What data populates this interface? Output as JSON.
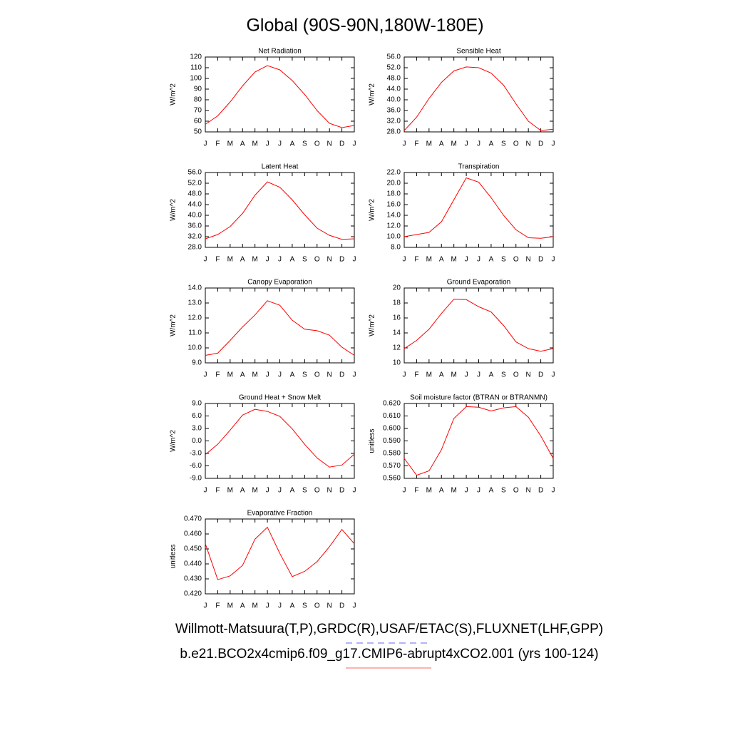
{
  "title": "Global (90S-90N,180W-180E)",
  "chart_data": [
    {
      "type": "line",
      "title": "Net Radiation",
      "y_label": "W/m^2",
      "color": "#ff0000",
      "categories": [
        "J",
        "F",
        "M",
        "A",
        "M",
        "J",
        "J",
        "A",
        "S",
        "O",
        "N",
        "D",
        "J"
      ],
      "values": [
        57,
        65,
        78,
        93,
        106,
        112,
        108,
        98,
        85,
        70,
        58,
        54,
        56
      ],
      "ylim": [
        50,
        120
      ],
      "yticks": [
        50,
        60,
        70,
        80,
        90,
        100,
        110,
        120
      ]
    },
    {
      "type": "line",
      "title": "Sensible Heat",
      "y_label": "W/m^2",
      "color": "#ff0000",
      "categories": [
        "J",
        "F",
        "M",
        "A",
        "M",
        "J",
        "J",
        "A",
        "S",
        "O",
        "N",
        "D",
        "J"
      ],
      "values": [
        28.5,
        33.5,
        40.5,
        46.5,
        50.8,
        52.3,
        52,
        50,
        45.5,
        38.5,
        32,
        28.5,
        29
      ],
      "ylim": [
        28,
        56
      ],
      "yticks": [
        {
          "value": 28,
          "label": "28.0"
        },
        {
          "value": 32,
          "label": "32.0"
        },
        {
          "value": 36,
          "label": "36.0"
        },
        {
          "value": 40,
          "label": "40.0"
        },
        {
          "value": 44,
          "label": "44.0"
        },
        {
          "value": 48,
          "label": "48.0"
        },
        {
          "value": 52,
          "label": "52.0"
        },
        {
          "value": 56,
          "label": "56.0"
        }
      ]
    },
    {
      "type": "line",
      "title": "Latent Heat",
      "y_label": "W/m^2",
      "color": "#ff0000",
      "categories": [
        "J",
        "F",
        "M",
        "A",
        "M",
        "J",
        "J",
        "A",
        "S",
        "O",
        "N",
        "D",
        "J"
      ],
      "values": [
        31.2,
        32.8,
        35.8,
        40.7,
        47.5,
        52.5,
        50.5,
        45.8,
        40.2,
        35.2,
        32.5,
        31,
        31.2
      ],
      "ylim": [
        28,
        56
      ],
      "yticks": [
        {
          "value": 28,
          "label": "28.0"
        },
        {
          "value": 32,
          "label": "32.0"
        },
        {
          "value": 36,
          "label": "36.0"
        },
        {
          "value": 40,
          "label": "40.0"
        },
        {
          "value": 44,
          "label": "44.0"
        },
        {
          "value": 48,
          "label": "48.0"
        },
        {
          "value": 52,
          "label": "52.0"
        },
        {
          "value": 56,
          "label": "56.0"
        }
      ]
    },
    {
      "type": "line",
      "title": "Transpiration",
      "y_label": "W/m^2",
      "color": "#ff0000",
      "categories": [
        "J",
        "F",
        "M",
        "A",
        "M",
        "J",
        "J",
        "A",
        "S",
        "O",
        "N",
        "D",
        "J"
      ],
      "values": [
        10,
        10.4,
        10.8,
        12.8,
        16.9,
        21,
        20.2,
        17.3,
        14,
        11.3,
        9.8,
        9.7,
        10
      ],
      "ylim": [
        8,
        22
      ],
      "yticks": [
        {
          "value": 8,
          "label": "8.0"
        },
        {
          "value": 10,
          "label": "10.0"
        },
        {
          "value": 12,
          "label": "12.0"
        },
        {
          "value": 14,
          "label": "14.0"
        },
        {
          "value": 16,
          "label": "16.0"
        },
        {
          "value": 18,
          "label": "18.0"
        },
        {
          "value": 20,
          "label": "20.0"
        },
        {
          "value": 22,
          "label": "22.0"
        }
      ]
    },
    {
      "type": "line",
      "title": "Canopy Evaporation",
      "y_label": "W/m^2",
      "color": "#ff0000",
      "categories": [
        "J",
        "F",
        "M",
        "A",
        "M",
        "J",
        "J",
        "A",
        "S",
        "O",
        "N",
        "D",
        "J"
      ],
      "values": [
        9.5,
        9.65,
        10.5,
        11.4,
        12.2,
        13.15,
        12.85,
        11.85,
        11.25,
        11.15,
        10.85,
        10.05,
        9.5
      ],
      "ylim": [
        9,
        14
      ],
      "yticks": [
        {
          "value": 9,
          "label": "9.0"
        },
        {
          "value": 10,
          "label": "10.0"
        },
        {
          "value": 11,
          "label": "11.0"
        },
        {
          "value": 12,
          "label": "12.0"
        },
        {
          "value": 13,
          "label": "13.0"
        },
        {
          "value": 14,
          "label": "14.0"
        }
      ]
    },
    {
      "type": "line",
      "title": "Ground Evaporation",
      "y_label": "W/m^2",
      "color": "#ff0000",
      "categories": [
        "J",
        "F",
        "M",
        "A",
        "M",
        "J",
        "J",
        "A",
        "S",
        "O",
        "N",
        "D",
        "J"
      ],
      "values": [
        11.9,
        13,
        14.5,
        16.6,
        18.5,
        18.45,
        17.5,
        16.8,
        15,
        12.8,
        11.9,
        11.55,
        11.9
      ],
      "ylim": [
        10,
        20
      ],
      "yticks": [
        10,
        12,
        14,
        16,
        18,
        20
      ]
    },
    {
      "type": "line",
      "title": "Ground Heat + Snow Melt",
      "y_label": "W/m^2",
      "color": "#ff0000",
      "categories": [
        "J",
        "F",
        "M",
        "A",
        "M",
        "J",
        "J",
        "A",
        "S",
        "O",
        "N",
        "D",
        "J"
      ],
      "values": [
        -3.3,
        -0.8,
        2.6,
        6.2,
        7.6,
        7.1,
        5.9,
        2.9,
        -0.8,
        -4.1,
        -6.3,
        -5.8,
        -3.2
      ],
      "ylim": [
        -9,
        9
      ],
      "yticks": [
        {
          "value": -9,
          "label": "-9.0"
        },
        {
          "value": -6,
          "label": "-6.0"
        },
        {
          "value": -3,
          "label": "-3.0"
        },
        {
          "value": 0,
          "label": "0.0"
        },
        {
          "value": 3,
          "label": "3.0"
        },
        {
          "value": 6,
          "label": "6.0"
        },
        {
          "value": 9,
          "label": "9.0"
        }
      ]
    },
    {
      "type": "line",
      "title": "Soil moisture factor (BTRAN or BTRANMN)",
      "y_label": "unitless",
      "color": "#ff0000",
      "categories": [
        "J",
        "F",
        "M",
        "A",
        "M",
        "J",
        "J",
        "A",
        "S",
        "O",
        "N",
        "D",
        "J"
      ],
      "values": [
        0.576,
        0.5625,
        0.566,
        0.583,
        0.608,
        0.6175,
        0.617,
        0.614,
        0.6165,
        0.6175,
        0.609,
        0.594,
        0.576
      ],
      "ylim": [
        0.56,
        0.62
      ],
      "yticks": [
        {
          "value": 0.56,
          "label": "0.560"
        },
        {
          "value": 0.57,
          "label": "0.570"
        },
        {
          "value": 0.58,
          "label": "0.580"
        },
        {
          "value": 0.59,
          "label": "0.590"
        },
        {
          "value": 0.6,
          "label": "0.600"
        },
        {
          "value": 0.61,
          "label": "0.610"
        },
        {
          "value": 0.62,
          "label": "0.620"
        }
      ]
    },
    {
      "type": "line",
      "title": "Evaporative Fraction",
      "y_label": "unitless",
      "color": "#ff0000",
      "categories": [
        "J",
        "F",
        "M",
        "A",
        "M",
        "J",
        "J",
        "A",
        "S",
        "O",
        "N",
        "D",
        "J"
      ],
      "values": [
        0.4535,
        0.4295,
        0.432,
        0.439,
        0.4565,
        0.4645,
        0.447,
        0.4315,
        0.435,
        0.4415,
        0.4515,
        0.463,
        0.4535
      ],
      "ylim": [
        0.42,
        0.47
      ],
      "yticks": [
        {
          "value": 0.42,
          "label": "0.420"
        },
        {
          "value": 0.43,
          "label": "0.430"
        },
        {
          "value": 0.44,
          "label": "0.440"
        },
        {
          "value": 0.45,
          "label": "0.450"
        },
        {
          "value": 0.46,
          "label": "0.460"
        },
        {
          "value": 0.47,
          "label": "0.470"
        }
      ]
    }
  ],
  "legend": [
    {
      "name": "Willmott-Matsuura(T,P),GRDC(R),USAF/ETAC(S),FLUXNET(LHF,GPP)",
      "color": "#6666ff",
      "dashed": true
    },
    {
      "name": "b.e21.BCO2x4cmip6.f09_g17.CMIP6-abrupt4xCO2.001 (yrs 100-124)",
      "color": "#ff6666",
      "dashed": false
    }
  ]
}
